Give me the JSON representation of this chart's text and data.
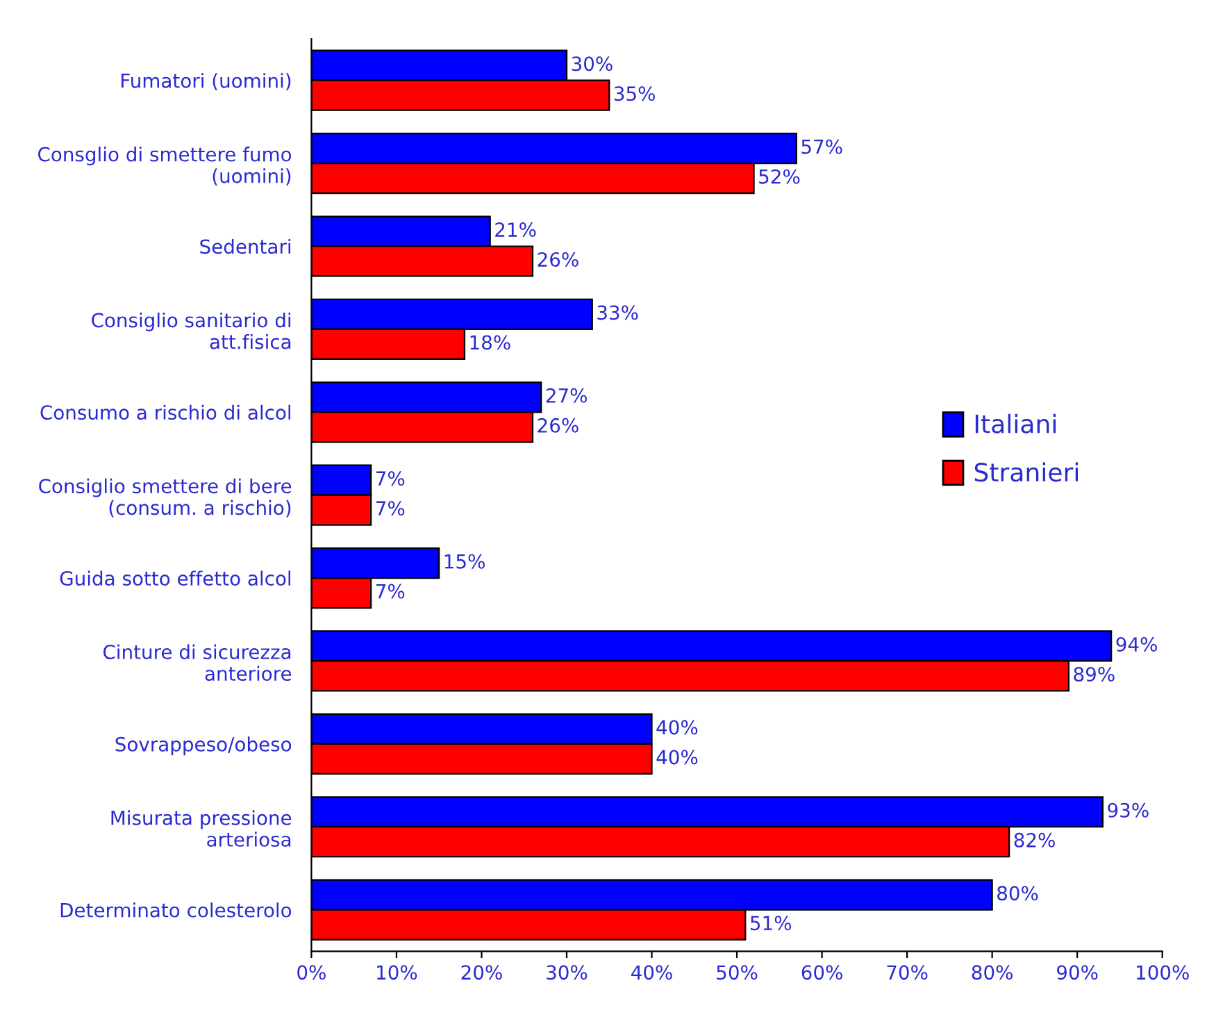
{
  "chart_data": {
    "type": "bar",
    "orientation": "horizontal",
    "categories": [
      "Fumatori (uomini)",
      "Consglio di smettere fumo\n(uomini)",
      "Sedentari",
      "Consiglio sanitario di\natt.fisica",
      "Consumo a rischio di alcol",
      "Consiglio smettere di bere\n(consum. a rischio)",
      "Guida sotto effetto alcol",
      "Cinture di sicurezza\nanteriore",
      "Sovrappeso/obeso",
      "Misurata pressione\narteriosa",
      "Determinato colesterolo"
    ],
    "series": [
      {
        "name": "Italiani",
        "color": "#0000ff",
        "values": [
          30,
          57,
          21,
          33,
          27,
          7,
          15,
          94,
          40,
          93,
          80
        ],
        "value_labels": [
          "30%",
          "57%",
          "21%",
          "33%",
          "27%",
          "7%",
          "15%",
          "94%",
          "40%",
          "93%",
          "80%"
        ]
      },
      {
        "name": "Stranieri",
        "color": "#ff0000",
        "values": [
          35,
          52,
          26,
          18,
          26,
          7,
          7,
          89,
          40,
          82,
          51
        ],
        "value_labels": [
          "35%",
          "52%",
          "26%",
          "18%",
          "26%",
          "7%",
          "7%",
          "89%",
          "40%",
          "82%",
          "51%"
        ]
      }
    ],
    "xlim": [
      0,
      100
    ],
    "xticks": [
      {
        "value": 0,
        "label": "0%"
      },
      {
        "value": 10,
        "label": "10%"
      },
      {
        "value": 20,
        "label": "20%"
      },
      {
        "value": 30,
        "label": "30%"
      },
      {
        "value": 40,
        "label": "40%"
      },
      {
        "value": 50,
        "label": "50%"
      },
      {
        "value": 60,
        "label": "60%"
      },
      {
        "value": 70,
        "label": "70%"
      },
      {
        "value": 80,
        "label": "80%"
      },
      {
        "value": 90,
        "label": "90%"
      },
      {
        "value": 100,
        "label": "100%"
      }
    ],
    "grid": false,
    "legend": "right"
  }
}
